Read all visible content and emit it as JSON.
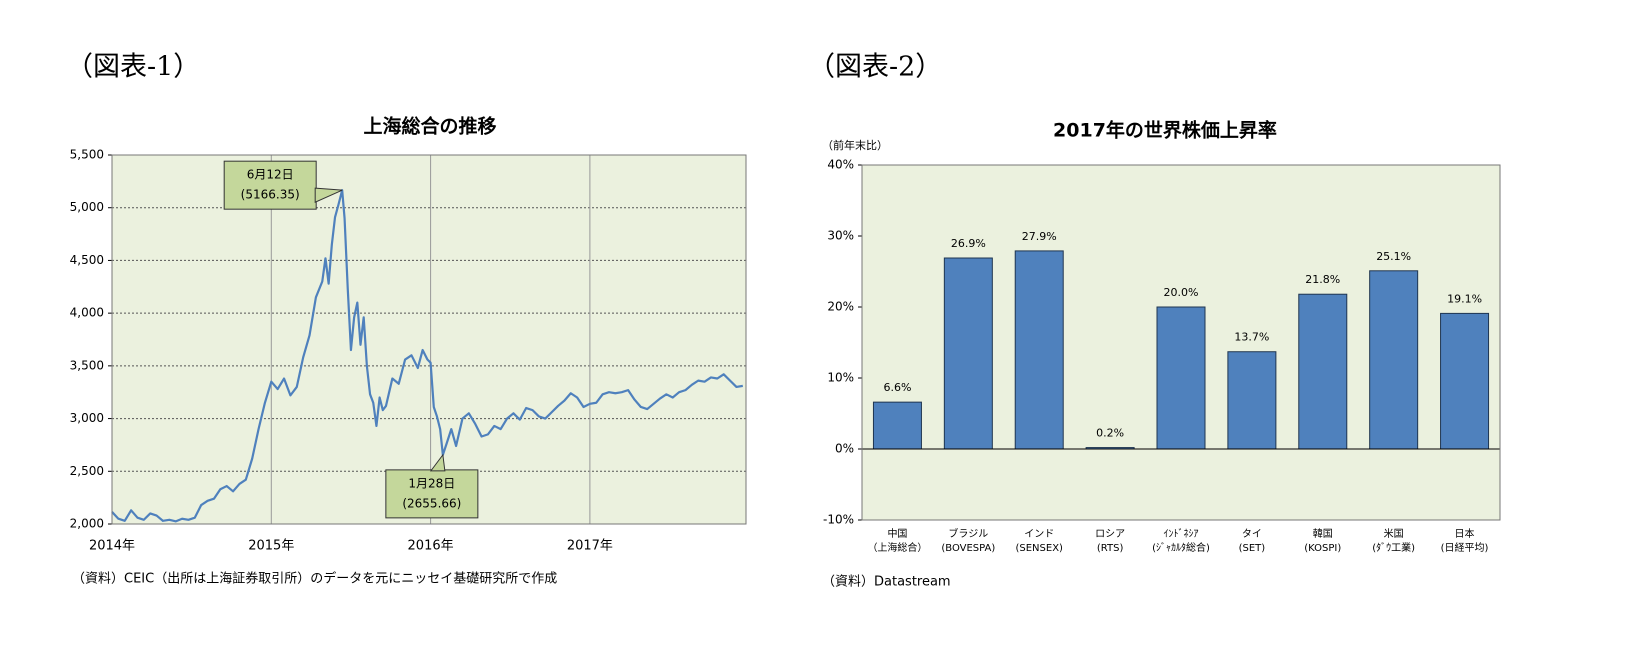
{
  "chart_data": [
    {
      "type": "line",
      "figure_label": "（図表-1）",
      "title": "上海総合の推移",
      "source": "（資料）CEIC（出所は上海証券取引所）のデータを元にニッセイ基礎研究所で作成",
      "color": "#4f81bd",
      "grid": true,
      "xlim": [
        2014,
        2017.98
      ],
      "xticks": [
        {
          "value": 2014,
          "label": "2014年"
        },
        {
          "value": 2015,
          "label": "2015年"
        },
        {
          "value": 2016,
          "label": "2016年"
        },
        {
          "value": 2017,
          "label": "2017年"
        }
      ],
      "ylim": [
        2000,
        5500
      ],
      "yticks": [
        {
          "value": 2000,
          "label": "2,000"
        },
        {
          "value": 2500,
          "label": "2,500"
        },
        {
          "value": 3000,
          "label": "3,000"
        },
        {
          "value": 3500,
          "label": "3,500"
        },
        {
          "value": 4000,
          "label": "4,000"
        },
        {
          "value": 4500,
          "label": "4,500"
        },
        {
          "value": 5000,
          "label": "5,000"
        },
        {
          "value": 5500,
          "label": "5,500"
        }
      ],
      "x": [
        2014.0,
        2014.04,
        2014.08,
        2014.12,
        2014.16,
        2014.2,
        2014.24,
        2014.28,
        2014.32,
        2014.36,
        2014.4,
        2014.44,
        2014.48,
        2014.52,
        2014.56,
        2014.6,
        2014.64,
        2014.68,
        2014.72,
        2014.76,
        2014.8,
        2014.84,
        2014.88,
        2014.92,
        2014.96,
        2015.0,
        2015.04,
        2015.08,
        2015.12,
        2015.16,
        2015.2,
        2015.24,
        2015.28,
        2015.32,
        2015.34,
        2015.36,
        2015.38,
        2015.4,
        2015.42,
        2015.445,
        2015.46,
        2015.48,
        2015.5,
        2015.52,
        2015.54,
        2015.56,
        2015.58,
        2015.6,
        2015.62,
        2015.64,
        2015.66,
        2015.68,
        2015.7,
        2015.72,
        2015.76,
        2015.8,
        2015.84,
        2015.88,
        2015.92,
        2015.95,
        2015.98,
        2016.0,
        2016.02,
        2016.04,
        2016.06,
        2016.077,
        2016.1,
        2016.13,
        2016.16,
        2016.2,
        2016.24,
        2016.28,
        2016.32,
        2016.36,
        2016.4,
        2016.44,
        2016.48,
        2016.52,
        2016.56,
        2016.6,
        2016.64,
        2016.68,
        2016.72,
        2016.76,
        2016.8,
        2016.84,
        2016.88,
        2016.92,
        2016.96,
        2017.0,
        2017.04,
        2017.08,
        2017.12,
        2017.16,
        2017.2,
        2017.24,
        2017.28,
        2017.32,
        2017.36,
        2017.4,
        2017.44,
        2017.48,
        2017.52,
        2017.56,
        2017.6,
        2017.64,
        2017.68,
        2017.72,
        2017.76,
        2017.8,
        2017.84,
        2017.88,
        2017.92,
        2017.96
      ],
      "values": [
        2115,
        2050,
        2030,
        2130,
        2060,
        2040,
        2100,
        2080,
        2030,
        2040,
        2025,
        2050,
        2040,
        2060,
        2180,
        2220,
        2240,
        2330,
        2360,
        2310,
        2380,
        2420,
        2620,
        2900,
        3150,
        3350,
        3280,
        3380,
        3220,
        3300,
        3580,
        3790,
        4150,
        4300,
        4520,
        4280,
        4650,
        4910,
        5020,
        5166.35,
        4900,
        4230,
        3650,
        3960,
        4100,
        3700,
        3960,
        3500,
        3230,
        3150,
        2930,
        3200,
        3080,
        3120,
        3380,
        3330,
        3560,
        3600,
        3480,
        3650,
        3560,
        3530,
        3110,
        3020,
        2900,
        2655.66,
        2760,
        2900,
        2740,
        3000,
        3050,
        2950,
        2830,
        2850,
        2930,
        2900,
        3000,
        3050,
        2990,
        3100,
        3080,
        3020,
        3000,
        3060,
        3120,
        3170,
        3240,
        3200,
        3110,
        3140,
        3150,
        3230,
        3250,
        3240,
        3250,
        3270,
        3180,
        3110,
        3090,
        3140,
        3190,
        3230,
        3200,
        3250,
        3270,
        3320,
        3360,
        3350,
        3390,
        3380,
        3420,
        3360,
        3300,
        3310
      ],
      "annotations": [
        {
          "label": "6月12日",
          "value_label": "(5166.35)",
          "x": 2015.445,
          "y": 5166.35
        },
        {
          "label": "1月28日",
          "value_label": "(2655.66)",
          "x": 2016.077,
          "y": 2655.66
        }
      ]
    },
    {
      "type": "bar",
      "figure_label": "（図表-2）",
      "title": "2017年の世界株価上昇率",
      "y_label": "（前年末比）",
      "source": "（資料）Datastream",
      "color": "#4f81bd",
      "grid": false,
      "categories": [
        "中国",
        "ブラジル",
        "インド",
        "ロシア",
        "ｲﾝﾄﾞﾈｼｱ",
        "タイ",
        "韓国",
        "米国",
        "日本"
      ],
      "subcategories": [
        "（上海総合）",
        "(BOVESPA)",
        "(SENSEX)",
        "(RTS)",
        "(ｼﾞｬｶﾙﾀ総合)",
        "(SET)",
        "(KOSPI)",
        "(ﾀﾞｳ工業)",
        "(日経平均)"
      ],
      "values": [
        6.6,
        26.9,
        27.9,
        0.2,
        20.0,
        13.7,
        21.8,
        25.1,
        19.1
      ],
      "value_labels": [
        "6.6%",
        "26.9%",
        "27.9%",
        "0.2%",
        "20.0%",
        "13.7%",
        "21.8%",
        "25.1%",
        "19.1%"
      ],
      "ylim": [
        -10,
        40
      ],
      "yticks": [
        {
          "value": -10,
          "label": "-10%"
        },
        {
          "value": 0,
          "label": "0%"
        },
        {
          "value": 10,
          "label": "10%"
        },
        {
          "value": 20,
          "label": "20%"
        },
        {
          "value": 30,
          "label": "30%"
        },
        {
          "value": 40,
          "label": "40%"
        }
      ]
    }
  ]
}
